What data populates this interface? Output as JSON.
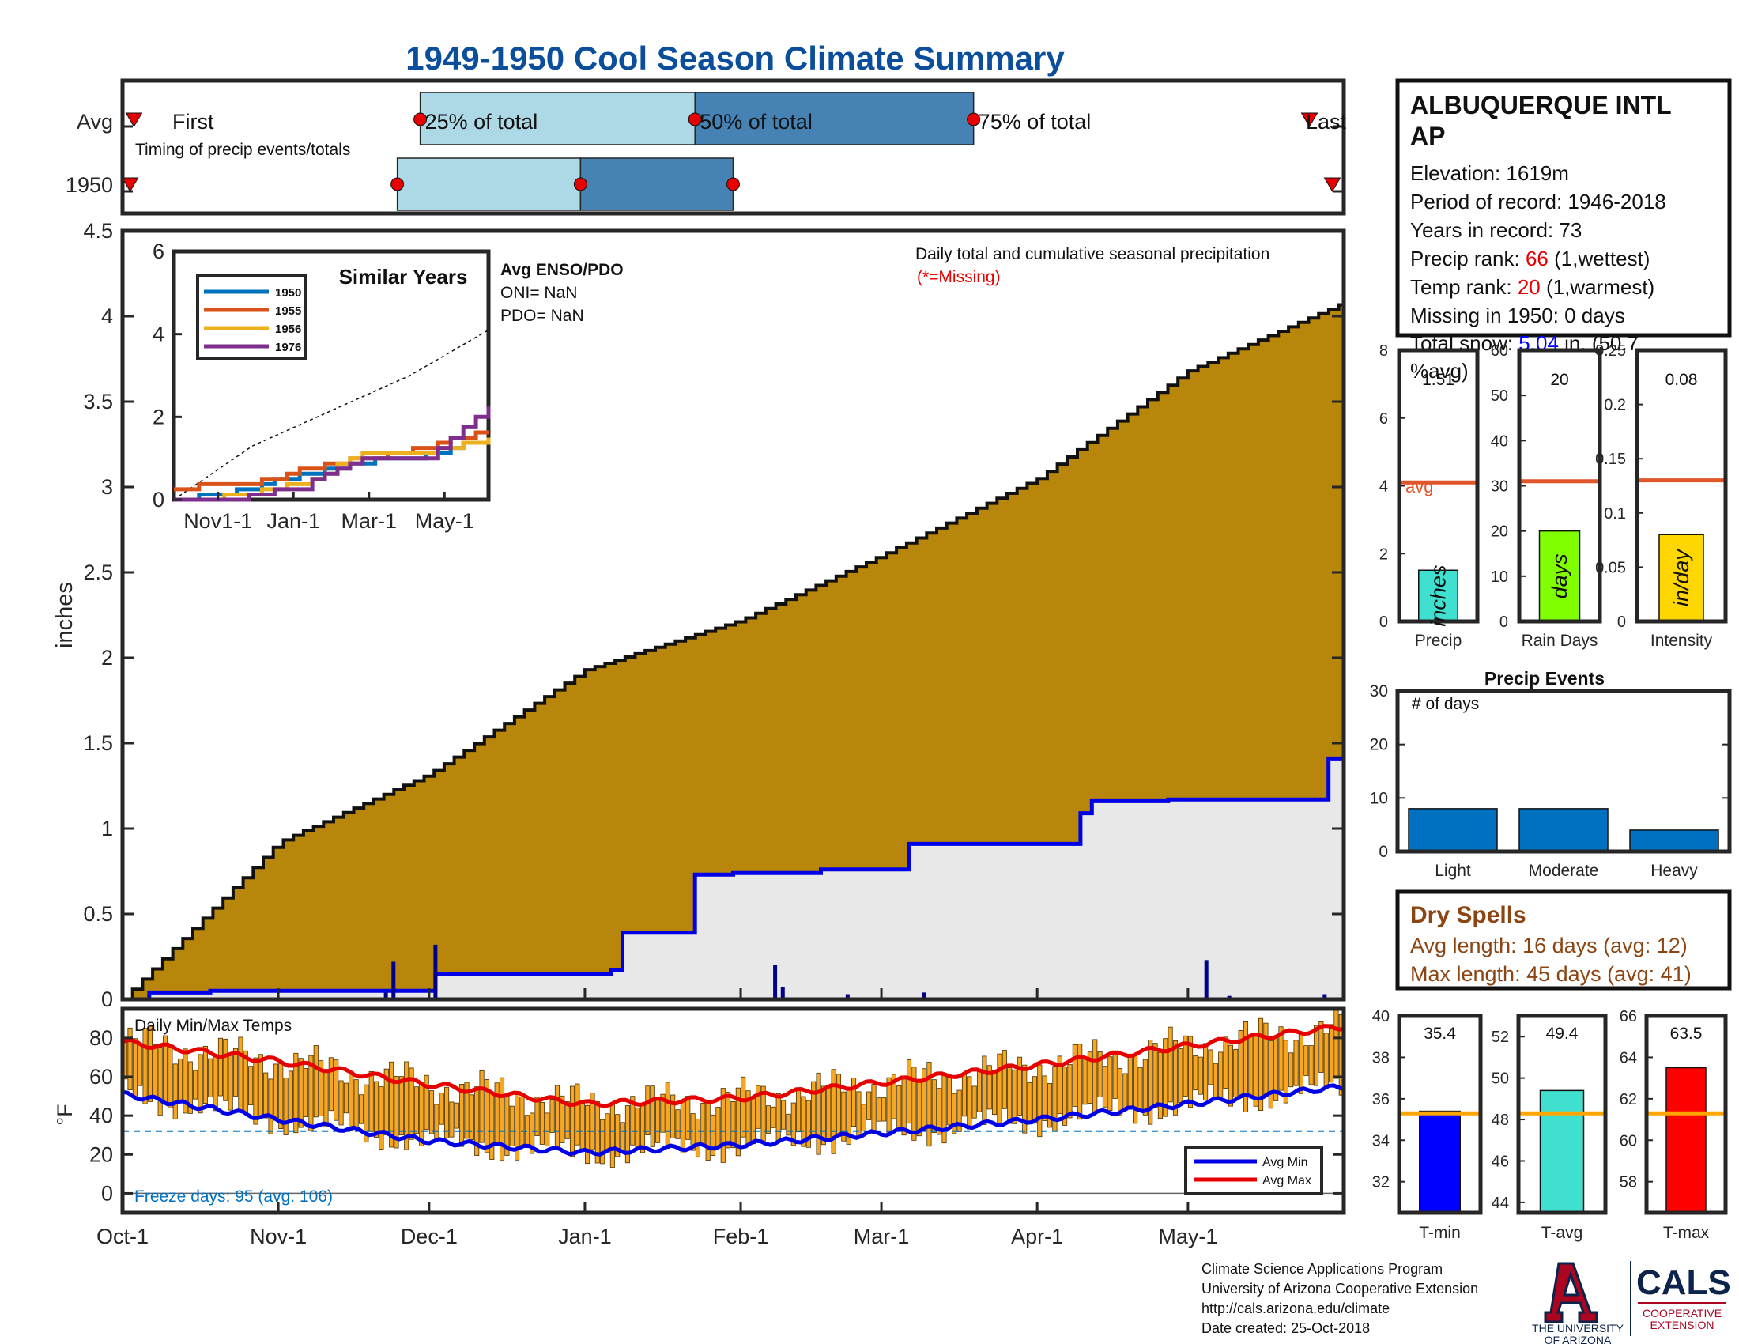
{
  "title": "1949-1950 Cool Season Climate Summary",
  "timing": {
    "row_labels": [
      "Avg",
      "1950"
    ],
    "first_label": "First",
    "last_label": "Last",
    "pct_labels": [
      "25% of total",
      "50% of total",
      "75% of total"
    ],
    "note": "Timing of precip events/totals",
    "avg_days": {
      "first": 3,
      "p25": 78,
      "p50": 150,
      "p75": 223,
      "last": 311
    },
    "y1950_days": {
      "first": 2,
      "p25": 72,
      "p50": 120,
      "p75": 160,
      "last": 317
    }
  },
  "station": {
    "name": "ALBUQUERQUE INTL AP",
    "elevation": "Elevation: 1619m",
    "period": "Period of record: 1946-2018",
    "years": "Years in record: 73",
    "precip_rank_label": "Precip rank: ",
    "precip_rank_value": "66",
    "precip_rank_note": " (1,wettest)",
    "temp_rank_label": "Temp rank: ",
    "temp_rank_value": "20",
    "temp_rank_note": " (1,warmest)",
    "missing": "Missing in 1950: 0 days",
    "snow_label": "Total snow: ",
    "snow_value": "5.04",
    "snow_suffix": " in. (50.7",
    "snow_suffix2": "%avg)"
  },
  "main_chart": {
    "title": "Daily total and cumulative seasonal precipitation",
    "missing_note": "(*=Missing)",
    "ylabel": "inches",
    "yticks": [
      "0",
      "0.5",
      "1",
      "1.5",
      "2",
      "2.5",
      "3",
      "3.5",
      "4",
      "4.5"
    ]
  },
  "x_axis_labels": [
    "Oct-1",
    "Nov-1",
    "Dec-1",
    "Jan-1",
    "Feb-1",
    "Mar-1",
    "Apr-1",
    "May-1"
  ],
  "inset": {
    "title": "Similar Years",
    "enso_title": "Avg ENSO/PDO",
    "oni": "ONI= NaN",
    "pdo": "PDO= NaN",
    "xticks": [
      "Nov1-1",
      "Jan-1",
      "Mar-1",
      "May-1"
    ],
    "yticks": [
      "0",
      "2",
      "4",
      "6"
    ]
  },
  "temp_chart": {
    "title": "Daily Min/Max Temps",
    "ylabel": "°F",
    "yticks": [
      "0",
      "20",
      "40",
      "60",
      "80"
    ],
    "freeze": "Freeze days: 95 (avg. 106)",
    "legend": [
      "Avg Min",
      "Avg Max"
    ]
  },
  "bar_panels": {
    "precip": {
      "label": "Precip",
      "unit": "inches",
      "yticks": [
        "0",
        "2",
        "4",
        "6",
        "8"
      ],
      "value_label": "1.51",
      "avg_label": "avg"
    },
    "raindays": {
      "label": "Rain Days",
      "unit": "days",
      "yticks": [
        "0",
        "10",
        "20",
        "30",
        "40",
        "50",
        "60"
      ],
      "value_label": "20"
    },
    "intensity": {
      "label": "Intensity",
      "unit": "in/day",
      "yticks": [
        "0",
        "0.05",
        "0.1",
        "0.15",
        "0.2",
        "0.25"
      ],
      "value_label": "0.08"
    }
  },
  "events": {
    "title": "Precip Events",
    "ylabel": "# of days",
    "yticks": [
      "0",
      "10",
      "20",
      "30"
    ],
    "categories": [
      "Light",
      "Moderate",
      "Heavy"
    ]
  },
  "dry_spells": {
    "title": "Dry Spells",
    "avg": "Avg length: 16 days (avg: 12)",
    "max": "Max length: 45 days (avg: 41)"
  },
  "temp_panels": {
    "tmin": {
      "label": "T-min",
      "value_label": "35.4",
      "yticks": [
        "32",
        "34",
        "36",
        "38",
        "40"
      ]
    },
    "tavg": {
      "label": "T-avg",
      "value_label": "49.4",
      "yticks": [
        "44",
        "46",
        "48",
        "50",
        "52"
      ]
    },
    "tmax": {
      "label": "T-max",
      "value_label": "63.5",
      "yticks": [
        "58",
        "60",
        "62",
        "64",
        "66"
      ]
    }
  },
  "footer": {
    "lines": [
      "Climate Science Applications Program",
      "University of Arizona Cooperative Extension",
      "http://cals.arizona.edu/climate",
      " Date created: 25-Oct-2018"
    ],
    "ua_line1": "THE UNIVERSITY",
    "ua_line2": "OF ARIZONA",
    "cals": "CALS",
    "cals_sub1": "COOPERATIVE",
    "cals_sub2": "EXTENSION"
  },
  "colors": {
    "title": "#0b4f9c",
    "avg_area": "#b8860b",
    "year_area": "#e8e8e8",
    "year_line": "#0000e6",
    "quarter1": "#add8e6",
    "quarter2": "#4682b4",
    "temp_bar": "#f5a623",
    "rank_red": "#e60000",
    "snow_blue": "#0000ff",
    "dry_brown": "#8b4513",
    "events_bar": "#0070c0",
    "orange_line": "#e0562a"
  },
  "chart_data": [
    {
      "type": "area",
      "title": "Daily total and cumulative seasonal precipitation",
      "ylabel": "inches",
      "xlabels": [
        "Oct-1",
        "Nov-1",
        "Dec-1",
        "Jan-1",
        "Feb-1",
        "Mar-1",
        "Apr-1",
        "May-1"
      ],
      "ylim": [
        0,
        4.5
      ],
      "series": [
        {
          "name": "Avg",
          "kind": "cumulative_area",
          "x": [
            "Oct-1",
            "Nov-1",
            "Dec-1",
            "Jan-1",
            "Feb-1",
            "Mar-1",
            "Apr-1",
            "May-1",
            "May-31"
          ],
          "values": [
            0,
            0.92,
            1.32,
            1.93,
            2.22,
            2.6,
            3.05,
            3.68,
            4.08
          ]
        },
        {
          "name": "1950",
          "kind": "cumulative_step",
          "x_day": [
            0,
            7,
            23,
            71,
            82,
            93,
            128,
            131,
            149,
            150,
            160,
            183,
            186,
            206,
            251,
            254,
            274,
            313,
            316,
            320
          ],
          "values": [
            0,
            0.04,
            0.05,
            0.05,
            0.15,
            0.15,
            0.17,
            0.39,
            0.39,
            0.73,
            0.74,
            0.76,
            0.76,
            0.91,
            1.09,
            1.16,
            1.17,
            1.17,
            1.41,
            1.45
          ]
        },
        {
          "name": "1950 daily",
          "kind": "daily_bars",
          "x_day": [
            69,
            71,
            82,
            90,
            171,
            173,
            190,
            210,
            284,
            290,
            306,
            315
          ],
          "values": [
            0.04,
            0.22,
            0.32,
            0.01,
            0.2,
            0.07,
            0.03,
            0.04,
            0.23,
            0.02,
            0.01,
            0.03
          ]
        }
      ]
    },
    {
      "type": "line",
      "title": "Similar Years",
      "xlabels": [
        "Nov1-1",
        "Jan-1",
        "Mar-1",
        "May-1"
      ],
      "ylim": [
        0,
        6
      ],
      "series": [
        {
          "name": "Avg",
          "x_frac": [
            0,
            0.25,
            0.5,
            0.75,
            1
          ],
          "values": [
            0,
            1.3,
            2.15,
            3.0,
            4.1
          ]
        },
        {
          "name": "1950",
          "x_frac": [
            0,
            0.2,
            0.4,
            0.6,
            0.8,
            1
          ],
          "values": [
            0,
            0.2,
            0.6,
            0.9,
            1.1,
            1.5
          ]
        },
        {
          "name": "1955",
          "x_frac": [
            0,
            0.2,
            0.4,
            0.6,
            0.8,
            1
          ],
          "values": [
            0.3,
            0.35,
            0.7,
            1.0,
            1.3,
            1.65
          ]
        },
        {
          "name": "1956",
          "x_frac": [
            0,
            0.2,
            0.4,
            0.6,
            0.8,
            1
          ],
          "values": [
            0,
            0.1,
            0.4,
            1.1,
            1.15,
            1.45
          ]
        },
        {
          "name": "1976",
          "x_frac": [
            0,
            0.2,
            0.4,
            0.6,
            0.8,
            1
          ],
          "values": [
            0,
            0.05,
            0.3,
            1.0,
            1.05,
            2.2
          ]
        }
      ]
    },
    {
      "type": "bar",
      "title": "Daily Min/Max Temps",
      "ylabel": "°F",
      "ylim": [
        -10,
        95
      ],
      "xlabels": [
        "Oct-1",
        "Nov-1",
        "Dec-1",
        "Jan-1",
        "Feb-1",
        "Mar-1",
        "Apr-1",
        "May-1"
      ],
      "series": [
        {
          "name": "Avg Max",
          "x": [
            "Oct-1",
            "Nov-1",
            "Dec-1",
            "Jan-1",
            "Feb-1",
            "Mar-1",
            "Apr-1",
            "May-1",
            "May-31"
          ],
          "values": [
            78,
            68,
            56,
            46,
            49,
            57,
            66,
            76,
            86
          ]
        },
        {
          "name": "Avg Min",
          "x": [
            "Oct-1",
            "Nov-1",
            "Dec-1",
            "Jan-1",
            "Feb-1",
            "Mar-1",
            "Apr-1",
            "May-1",
            "May-31"
          ],
          "values": [
            51,
            38,
            27,
            21,
            25,
            31,
            38,
            46,
            55
          ]
        },
        {
          "name": "Freeze line",
          "values": [
            32
          ]
        }
      ]
    },
    {
      "type": "bar",
      "title": "Precip",
      "ylabel": "inches",
      "categories": [
        "Precip"
      ],
      "values": [
        1.51
      ],
      "avg": 4.1,
      "ylim": [
        0,
        8
      ]
    },
    {
      "type": "bar",
      "title": "Rain Days",
      "ylabel": "days",
      "categories": [
        "Rain Days"
      ],
      "values": [
        20
      ],
      "avg": 31,
      "ylim": [
        0,
        60
      ]
    },
    {
      "type": "bar",
      "title": "Intensity",
      "ylabel": "in/day",
      "categories": [
        "Intensity"
      ],
      "values": [
        0.08
      ],
      "avg": 0.13,
      "ylim": [
        0,
        0.25
      ]
    },
    {
      "type": "bar",
      "title": "Precip Events",
      "ylabel": "# of days",
      "categories": [
        "Light",
        "Moderate",
        "Heavy"
      ],
      "values": [
        8,
        8,
        4
      ],
      "ylim": [
        0,
        30
      ]
    },
    {
      "type": "bar",
      "title": "T-min",
      "categories": [
        "T-min"
      ],
      "values": [
        35.4
      ],
      "avg": 35.3,
      "ylim": [
        30.5,
        40
      ]
    },
    {
      "type": "bar",
      "title": "T-avg",
      "categories": [
        "T-avg"
      ],
      "values": [
        49.4
      ],
      "avg": 48.3,
      "ylim": [
        43.5,
        53
      ]
    },
    {
      "type": "bar",
      "title": "T-max",
      "categories": [
        "T-max"
      ],
      "values": [
        63.5
      ],
      "avg": 61.3,
      "ylim": [
        56.5,
        66
      ]
    }
  ]
}
